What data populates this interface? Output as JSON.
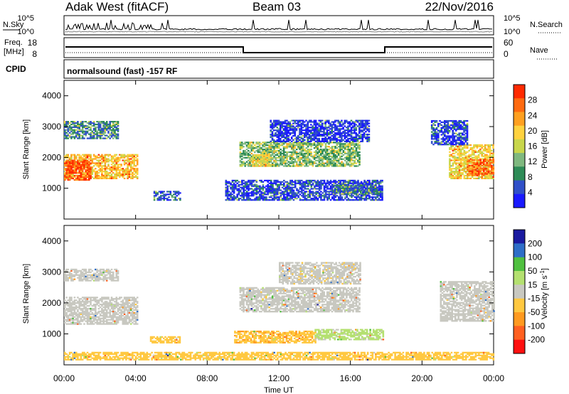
{
  "header": {
    "station": "Adak West (fitACF)",
    "beam": "Beam 03",
    "date": "22/Nov/2016"
  },
  "noise_panel": {
    "left_label": "N.Sky",
    "right_label": "N.Search",
    "y_ticks": [
      "10^5",
      "10^0"
    ]
  },
  "freq_panel": {
    "left_label_1": "Freq.",
    "left_label_2": "[MHz]",
    "right_label": "Nave",
    "left_ticks": [
      "18",
      "8"
    ],
    "right_ticks": [
      "60",
      "0"
    ]
  },
  "cpid": {
    "label": "CPID",
    "text": "normalsound (fast) -157 RF"
  },
  "xaxis": {
    "label": "Time UT",
    "ticks": [
      "00:00",
      "04:00",
      "08:00",
      "12:00",
      "16:00",
      "20:00",
      "00:00"
    ]
  },
  "colors": {
    "power_scale": [
      "#1a1aff",
      "#3050c8",
      "#2e8b57",
      "#7fb87f",
      "#c8d64b",
      "#ffd23f",
      "#ffa020",
      "#ff6a10",
      "#ff2a00"
    ],
    "velocity_scale": [
      "#ff1010",
      "#ff6020",
      "#ff9a20",
      "#ffc840",
      "#c8c8c0",
      "#b4e070",
      "#50c040",
      "#2e6ec8",
      "#1a1aa0"
    ]
  },
  "chart_data": [
    {
      "type": "heatmap",
      "title": "",
      "xlabel": "Time UT",
      "ylabel": "Slant Range [km]",
      "xlim": [
        0,
        24
      ],
      "ylim": [
        0,
        4500
      ],
      "y_ticks": [
        1000,
        2000,
        3000,
        4000
      ],
      "colorbar": {
        "label": "Power [dB]",
        "ticks": [
          "28",
          "24",
          "20",
          "16",
          "12",
          "8",
          "4"
        ],
        "range": [
          0,
          32
        ]
      },
      "regions": [
        {
          "t0": 0.0,
          "t1": 4.1,
          "r_low": 1300,
          "r_high": 2100,
          "value": 20
        },
        {
          "t0": 0.0,
          "t1": 1.5,
          "r_low": 1250,
          "r_high": 1900,
          "value": 27
        },
        {
          "t0": 0.0,
          "t1": 3.0,
          "r_low": 2600,
          "r_high": 3150,
          "value": 8
        },
        {
          "t0": 5.0,
          "t1": 6.5,
          "r_low": 600,
          "r_high": 900,
          "value": 6
        },
        {
          "t0": 9.8,
          "t1": 16.5,
          "r_low": 1700,
          "r_high": 2500,
          "value": 12
        },
        {
          "t0": 10.5,
          "t1": 11.5,
          "r_low": 1700,
          "r_high": 2100,
          "value": 18
        },
        {
          "t0": 9.0,
          "t1": 17.8,
          "r_low": 600,
          "r_high": 1250,
          "value": 4
        },
        {
          "t0": 15.0,
          "t1": 17.5,
          "r_low": 800,
          "r_high": 1100,
          "value": 7
        },
        {
          "t0": 11.5,
          "t1": 17.0,
          "r_low": 2500,
          "r_high": 3200,
          "value": 3
        },
        {
          "t0": 21.5,
          "t1": 24.0,
          "r_low": 1300,
          "r_high": 2400,
          "value": 18
        },
        {
          "t0": 22.5,
          "t1": 24.0,
          "r_low": 1400,
          "r_high": 1900,
          "value": 26
        },
        {
          "t0": 20.5,
          "t1": 22.5,
          "r_low": 2400,
          "r_high": 3200,
          "value": 4
        }
      ]
    },
    {
      "type": "heatmap",
      "title": "",
      "xlabel": "Time UT",
      "ylabel": "Slant Range [km]",
      "xlim": [
        0,
        24
      ],
      "ylim": [
        0,
        4500
      ],
      "y_ticks": [
        1000,
        2000,
        3000,
        4000
      ],
      "colorbar": {
        "label": "Velocity [m s^-1]",
        "ticks": [
          "200",
          "100",
          "50",
          "15",
          "-15",
          "-50",
          "-100",
          "-200"
        ],
        "range": [
          -250,
          250
        ]
      },
      "regions": [
        {
          "t0": 0.0,
          "t1": 4.1,
          "r_low": 1300,
          "r_high": 2200,
          "value": 0
        },
        {
          "t0": 0.0,
          "t1": 3.0,
          "r_low": 2700,
          "r_high": 3100,
          "value": 0
        },
        {
          "t0": 4.8,
          "t1": 6.5,
          "r_low": 700,
          "r_high": 900,
          "value": -60
        },
        {
          "t0": 9.8,
          "t1": 16.5,
          "r_low": 1700,
          "r_high": 2500,
          "value": 0
        },
        {
          "t0": 9.5,
          "t1": 14.0,
          "r_low": 700,
          "r_high": 1100,
          "value": -70
        },
        {
          "t0": 14.0,
          "t1": 17.8,
          "r_low": 800,
          "r_high": 1150,
          "value": 40
        },
        {
          "t0": 12.0,
          "t1": 16.5,
          "r_low": 2600,
          "r_high": 3300,
          "value": -10
        },
        {
          "t0": 21.0,
          "t1": 24.0,
          "r_low": 1400,
          "r_high": 2700,
          "value": 0
        },
        {
          "t0": 0.0,
          "t1": 24.0,
          "r_low": 150,
          "r_high": 400,
          "value": -60
        }
      ]
    }
  ]
}
